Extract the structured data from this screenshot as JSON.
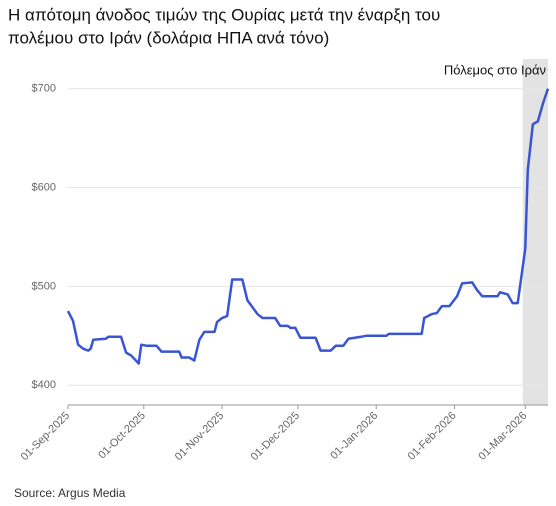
{
  "chart_data": {
    "type": "line",
    "title": [
      "Η απότομη άνοδος τιμών της Ουρίας μετά την έναρξη του",
      "πολέμου στο Ιράν (δολάρια ΗΠΑ ανά τόνο)"
    ],
    "source": "Source: Argus Media",
    "shade": {
      "start": "2026-02-28",
      "label": "Πόλεμος στο Ιράν",
      "color": "#e3e3e3"
    },
    "grid": true,
    "x": [
      "2025-09-01",
      "2025-09-03",
      "2025-09-05",
      "2025-09-07",
      "2025-09-09",
      "2025-09-10",
      "2025-09-11",
      "2025-09-16",
      "2025-09-17",
      "2025-09-22",
      "2025-09-23",
      "2025-09-24",
      "2025-09-26",
      "2025-09-29",
      "2025-09-30",
      "2025-10-02",
      "2025-10-06",
      "2025-10-08",
      "2025-10-15",
      "2025-10-16",
      "2025-10-19",
      "2025-10-21",
      "2025-10-23",
      "2025-10-25",
      "2025-10-29",
      "2025-10-30",
      "2025-11-01",
      "2025-11-03",
      "2025-11-05",
      "2025-11-09",
      "2025-11-11",
      "2025-11-13",
      "2025-11-15",
      "2025-11-17",
      "2025-11-22",
      "2025-11-24",
      "2025-11-27",
      "2025-11-28",
      "2025-11-30",
      "2025-12-02",
      "2025-12-08",
      "2025-12-10",
      "2025-12-14",
      "2025-12-16",
      "2025-12-19",
      "2025-12-21",
      "2025-12-26",
      "2025-12-28",
      "2026-01-05",
      "2026-01-06",
      "2026-01-19",
      "2026-01-20",
      "2026-01-23",
      "2026-01-25",
      "2026-01-27",
      "2026-01-30",
      "2026-02-02",
      "2026-02-04",
      "2026-02-08",
      "2026-02-10",
      "2026-02-12",
      "2026-02-18",
      "2026-02-19",
      "2026-02-22",
      "2026-02-24",
      "2026-02-26",
      "2026-03-01",
      "2026-03-02",
      "2026-03-04",
      "2026-03-06",
      "2026-03-08",
      "2026-03-10"
    ],
    "series": [
      {
        "name": "Urea",
        "color": "#3a55d4",
        "values": [
          475,
          465,
          441,
          437,
          435,
          437,
          446,
          447,
          449,
          449,
          441,
          433,
          430,
          422,
          441,
          440,
          440,
          434,
          434,
          428,
          428,
          425,
          446,
          454,
          454,
          464,
          468,
          470,
          507,
          507,
          486,
          479,
          472,
          468,
          468,
          460,
          460,
          458,
          458,
          448,
          448,
          435,
          435,
          440,
          440,
          447,
          449,
          450,
          450,
          452,
          452,
          468,
          472,
          473,
          480,
          480,
          490,
          503,
          504,
          496,
          490,
          490,
          494,
          492,
          483,
          483,
          538,
          618,
          664,
          667,
          685,
          700
        ]
      }
    ],
    "xlim": [
      "2025-09-01",
      "2026-03-10"
    ],
    "xticks": [
      {
        "value": "2025-09-01",
        "label": "01-Sep-2025"
      },
      {
        "value": "2025-10-01",
        "label": "01-Oct-2025"
      },
      {
        "value": "2025-11-01",
        "label": "01-Nov-2025"
      },
      {
        "value": "2025-12-01",
        "label": "01-Dec-2025"
      },
      {
        "value": "2026-01-01",
        "label": "01-Jan-2026"
      },
      {
        "value": "2026-02-01",
        "label": "01-Feb-2026"
      },
      {
        "value": "2026-03-01",
        "label": "01-Mar-2026"
      }
    ],
    "ylim": [
      380,
      730
    ],
    "yticks": [
      {
        "value": 400,
        "label": "$400"
      },
      {
        "value": 500,
        "label": "$500"
      },
      {
        "value": 600,
        "label": "$600"
      },
      {
        "value": 700,
        "label": "$700"
      }
    ]
  }
}
